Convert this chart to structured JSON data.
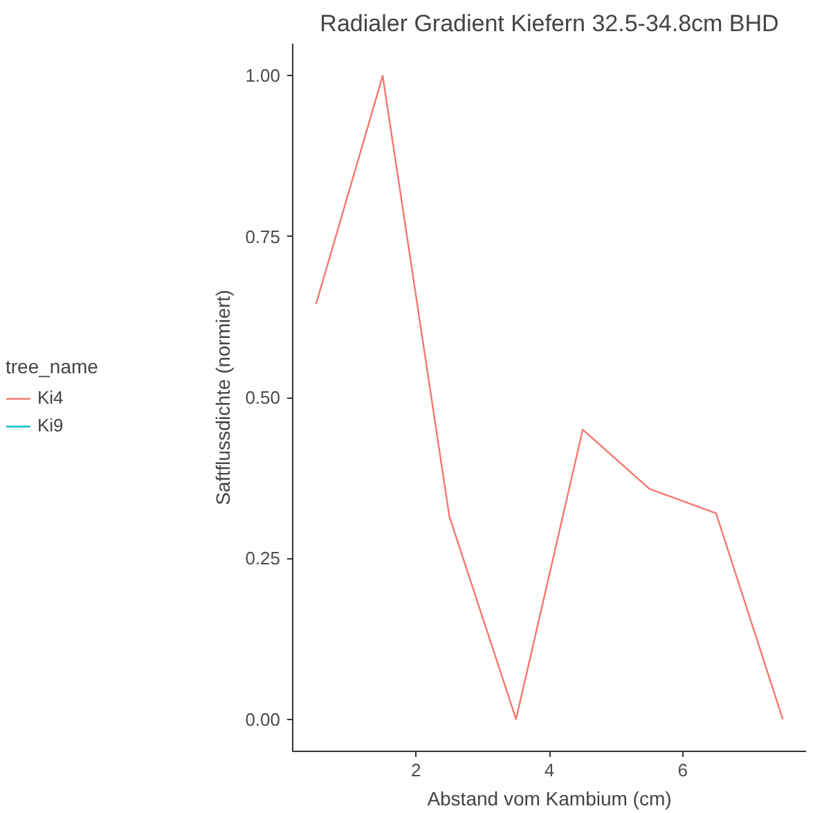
{
  "chart_data": {
    "type": "line",
    "title": "Radialer Gradient Kiefern 32.5-34.8cm BHD",
    "xlabel": "Abstand vom Kambium (cm)",
    "ylabel": "Saftflussdichte (normiert)",
    "legend_title": "tree_name",
    "x": [
      0.5,
      1.5,
      2.5,
      3.5,
      4.5,
      5.5,
      6.5,
      7.5
    ],
    "series": [
      {
        "name": "Ki4",
        "color": "#f8766d",
        "values": [
          0.645,
          1.0,
          0.315,
          0.0,
          0.45,
          0.358,
          0.32,
          0.0
        ]
      },
      {
        "name": "Ki9",
        "color": "#00bfc4",
        "values": [
          null,
          null,
          null,
          null,
          null,
          null,
          null,
          null
        ]
      }
    ],
    "xlim": [
      0.15,
      7.85
    ],
    "ylim": [
      -0.05,
      1.05
    ],
    "xticks": [
      2,
      4,
      6
    ],
    "yticks": [
      {
        "value": 0,
        "label": "0.00"
      },
      {
        "value": 0.25,
        "label": "0.25"
      },
      {
        "value": 0.5,
        "label": "0.50"
      },
      {
        "value": 0.75,
        "label": "0.75"
      },
      {
        "value": 1,
        "label": "1.00"
      }
    ],
    "grid": false,
    "legend": "left",
    "line_style": "solid"
  }
}
